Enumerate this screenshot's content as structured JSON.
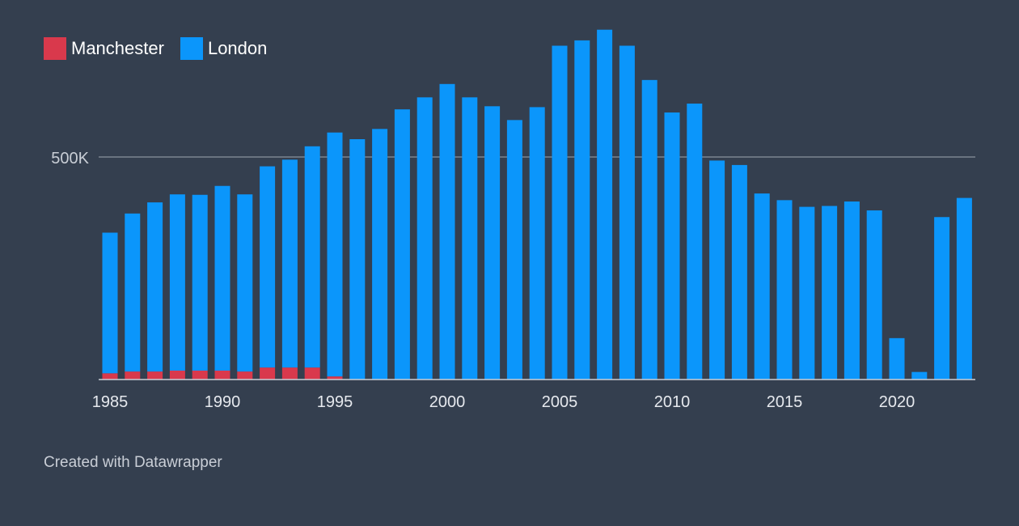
{
  "legend": [
    {
      "label": "Manchester",
      "color": "#d9394c"
    },
    {
      "label": "London",
      "color": "#0b96fb"
    }
  ],
  "credit": "Created with Datawrapper",
  "chart_data": {
    "type": "bar",
    "stacked": true,
    "x": [
      1985,
      1986,
      1987,
      1988,
      1989,
      1990,
      1991,
      1992,
      1993,
      1994,
      1995,
      1996,
      1997,
      1998,
      1999,
      2000,
      2001,
      2002,
      2003,
      2004,
      2005,
      2006,
      2007,
      2008,
      2009,
      2010,
      2011,
      2012,
      2013,
      2014,
      2015,
      2016,
      2017,
      2018,
      2019,
      2020,
      2021,
      2022,
      2023
    ],
    "series": [
      {
        "name": "Manchester",
        "color": "#d9394c",
        "values": [
          14000,
          18000,
          18000,
          20000,
          20000,
          20000,
          18000,
          27000,
          27000,
          27000,
          7000,
          0,
          0,
          0,
          0,
          0,
          0,
          0,
          0,
          0,
          0,
          0,
          0,
          0,
          0,
          0,
          0,
          0,
          0,
          0,
          0,
          0,
          0,
          0,
          0,
          0,
          0,
          0,
          0
        ]
      },
      {
        "name": "London",
        "color": "#0b96fb",
        "values": [
          316000,
          355000,
          380000,
          396000,
          395000,
          415000,
          398000,
          452000,
          467000,
          497000,
          548000,
          540000,
          563000,
          607000,
          634000,
          664000,
          634000,
          614000,
          583000,
          612000,
          750000,
          762000,
          786000,
          750000,
          673000,
          600000,
          620000,
          492000,
          482000,
          418000,
          403000,
          388000,
          390000,
          400000,
          380000,
          93000,
          17000,
          365000,
          408000
        ]
      }
    ],
    "y_ticks": [
      {
        "value": 500000,
        "label": "500K"
      }
    ],
    "x_tick_years": [
      1985,
      1990,
      1995,
      2000,
      2005,
      2010,
      2015,
      2020
    ],
    "ylim": [
      0,
      800000
    ],
    "grid": true,
    "legend_position": "top-left"
  }
}
